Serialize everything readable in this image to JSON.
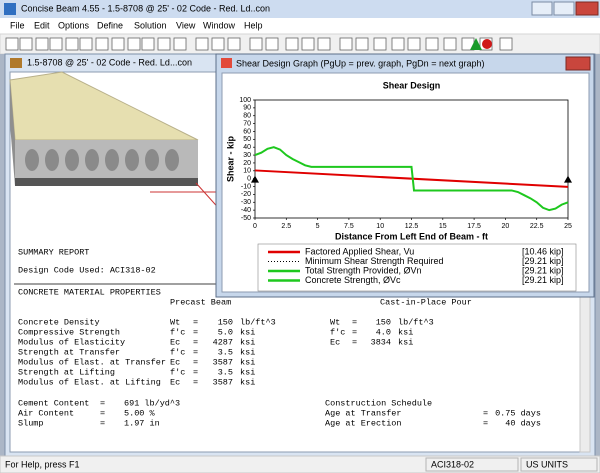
{
  "window": {
    "title": "Concise Beam 4.55 - 1.5-8708 @ 25' - 02 Code - Red. Ld..con"
  },
  "menu": [
    "File",
    "Edit",
    "Options",
    "Define",
    "Solution",
    "View",
    "Window",
    "Help"
  ],
  "child_window": {
    "title": "1.5-8708 @ 25' - 02 Code - Red. Ld...con"
  },
  "graph_window": {
    "title": "Shear Design Graph   (PgUp = prev. graph, PgDn = next graph)"
  },
  "chart_data": {
    "type": "line",
    "title": "Shear Design",
    "y_label": "Shear - kip",
    "x_label": "Distance From Left End of Beam - ft",
    "xlim": [
      0,
      25
    ],
    "xticks": [
      0,
      2.5,
      5,
      7.5,
      10,
      12.5,
      15,
      17.5,
      20,
      22.5,
      25
    ],
    "ylim": [
      -50,
      100
    ],
    "yticks": [
      -50,
      -40,
      -30,
      -20,
      -10,
      0,
      10,
      20,
      30,
      40,
      50,
      60,
      70,
      80,
      90,
      100
    ],
    "series": [
      {
        "name": "Factored Applied Shear, Vu",
        "legend_label": "[10.46 kip]",
        "color": "#e00000",
        "style": "solid",
        "x": [
          0,
          25
        ],
        "values": [
          10.46,
          -10.46
        ]
      },
      {
        "name": "Minimum Shear Strength Required",
        "legend_label": "[29.21 kip]",
        "color": "#000000",
        "style": "dotted"
      },
      {
        "name": "Total Strength Provided, ØVn",
        "legend_label": "[29.21 kip]",
        "color": "#1ec81e",
        "style": "solid",
        "x": [
          0,
          0.5,
          1,
          1.5,
          2,
          2.5,
          3,
          3.5,
          4,
          4.5,
          12.5,
          12.7,
          20.5,
          21,
          21.5,
          22,
          22.5,
          23,
          23.5,
          24,
          24.5,
          25
        ],
        "values": [
          30,
          33,
          38,
          40,
          37,
          30,
          25,
          21,
          17,
          15,
          15,
          -15,
          -15,
          -17,
          -21,
          -25,
          -30,
          -37,
          -40,
          -38,
          -33,
          -30
        ]
      },
      {
        "name": "Concrete Strength, ØVc",
        "legend_label": "[29.21 kip]",
        "color": "#1ec81e",
        "style": "solid"
      }
    ]
  },
  "report": {
    "title": "SUMMARY REPORT",
    "code": "Design Code Used: ACI318-02",
    "section": "CONCRETE MATERIAL PROPERTIES",
    "headers": [
      "Precast Beam",
      "Cast-in-Place Pour"
    ],
    "rows": [
      [
        "Concrete Density",
        "Wt",
        "=",
        "150",
        "lb/ft^3",
        "Wt",
        "=",
        "150",
        "lb/ft^3"
      ],
      [
        "Compressive Strength",
        "f'c",
        "=",
        "5.0",
        "ksi",
        "f'c",
        "=",
        "4.0",
        "ksi"
      ],
      [
        "Modulus of Elasticity",
        "Ec",
        "=",
        "4287",
        "ksi",
        "Ec",
        "=",
        "3834",
        "ksi"
      ],
      [
        "Strength at Transfer",
        "f'c",
        "=",
        "3.5",
        "ksi"
      ],
      [
        "Modulus of Elast. at Transfer",
        "Ec",
        "=",
        "3587",
        "ksi"
      ],
      [
        "Strength at Lifting",
        "f'c",
        "=",
        "3.5",
        "ksi"
      ],
      [
        "Modulus of Elast. at Lifting",
        "Ec",
        "=",
        "3587",
        "ksi"
      ]
    ],
    "mix": [
      [
        "Cement Content",
        "=",
        "691 lb/yd^3"
      ],
      [
        "Air Content",
        "=",
        "5.00 %"
      ],
      [
        "Slump",
        "=",
        "1.97 in"
      ]
    ],
    "schedule_title": "Construction Schedule",
    "schedule": [
      [
        "Age at Transfer",
        "=",
        "0.75 days"
      ],
      [
        "Age at Erection",
        "=",
        "40 days"
      ]
    ]
  },
  "status_bar": {
    "help": "For Help, press F1",
    "code": "ACI318-02",
    "units": "US UNITS"
  }
}
